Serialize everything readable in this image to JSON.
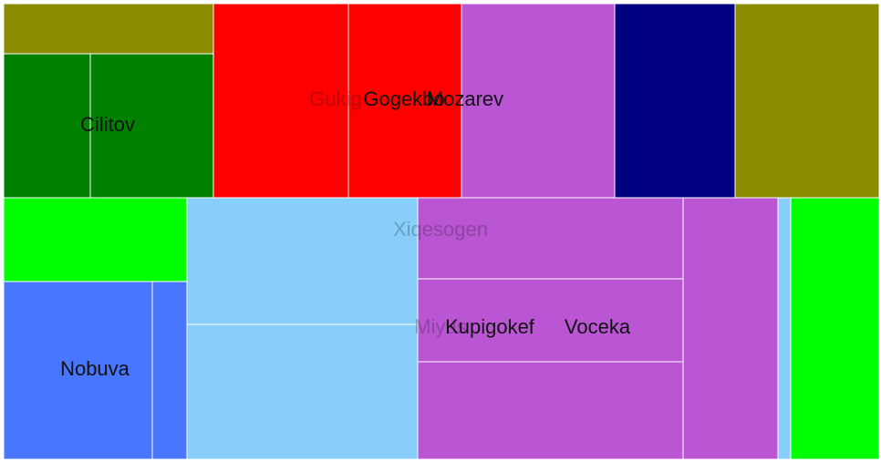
{
  "chart_data": {
    "type": "treemap",
    "title": "",
    "colors": {
      "olive": "#8b8b00",
      "green": "#008000",
      "red": "#ff0000",
      "orchid": "#ba55d3",
      "navy": "#000080",
      "lime": "#00ff00",
      "blue": "#4876ff",
      "lightblue": "#87cefa"
    },
    "nodes": [
      {
        "id": "olive_a",
        "label": "",
        "value": 12.8,
        "color": "olive"
      },
      {
        "id": "cilitov_a",
        "label": "",
        "value": 14.6,
        "color": "green"
      },
      {
        "id": "cilitov_b",
        "label": "",
        "value": 20.8,
        "color": "green"
      },
      {
        "id": "gukig",
        "label": "Gukig",
        "value": 31.7,
        "color": "red"
      },
      {
        "id": "gogekbo",
        "label": "Gogekbo",
        "value": 26.4,
        "color": "red"
      },
      {
        "id": "mozarev",
        "label": "Mozarev",
        "value": 36.0,
        "color": "orchid"
      },
      {
        "id": "navy_a",
        "label": "",
        "value": 28.5,
        "color": "navy"
      },
      {
        "id": "olive_b",
        "label": "",
        "value": 33.6,
        "color": "olive"
      },
      {
        "id": "lime_a",
        "label": "",
        "value": 18.8,
        "color": "lime"
      },
      {
        "id": "nobuva_a",
        "label": "",
        "value": 31.3,
        "color": "blue"
      },
      {
        "id": "nobuva_b",
        "label": "",
        "value": 7.3,
        "color": "blue"
      },
      {
        "id": "xiqes_a",
        "label": "",
        "value": 34.6,
        "color": "lightblue"
      },
      {
        "id": "xiqes_b",
        "label": "",
        "value": 37.2,
        "color": "lightblue"
      },
      {
        "id": "kupig_a",
        "label": "",
        "value": 25.9,
        "color": "orchid"
      },
      {
        "id": "kupig_b",
        "label": "",
        "value": 26.4,
        "color": "orchid"
      },
      {
        "id": "kupig_c",
        "label": "",
        "value": 30.1,
        "color": "orchid"
      },
      {
        "id": "voceka",
        "label": "",
        "value": 29.5,
        "color": "orchid"
      },
      {
        "id": "lb_strip",
        "label": "",
        "value": 4.5,
        "color": "lightblue"
      },
      {
        "id": "lime_b",
        "label": "",
        "value": 27.5,
        "color": "lime"
      }
    ],
    "labels": [
      {
        "text": "Cilitov",
        "faint": false
      },
      {
        "text": "Gukig",
        "faint": true
      },
      {
        "text": "Gogekbo",
        "faint": false
      },
      {
        "text": "Mozarev",
        "faint": false
      },
      {
        "text": "Xiqesogen",
        "faint": true
      },
      {
        "text": "Nobuva",
        "faint": false
      },
      {
        "text": "Miyus",
        "faint": true
      },
      {
        "text": "Kupigokef",
        "faint": false
      },
      {
        "text": "Voceka",
        "faint": false
      }
    ]
  }
}
